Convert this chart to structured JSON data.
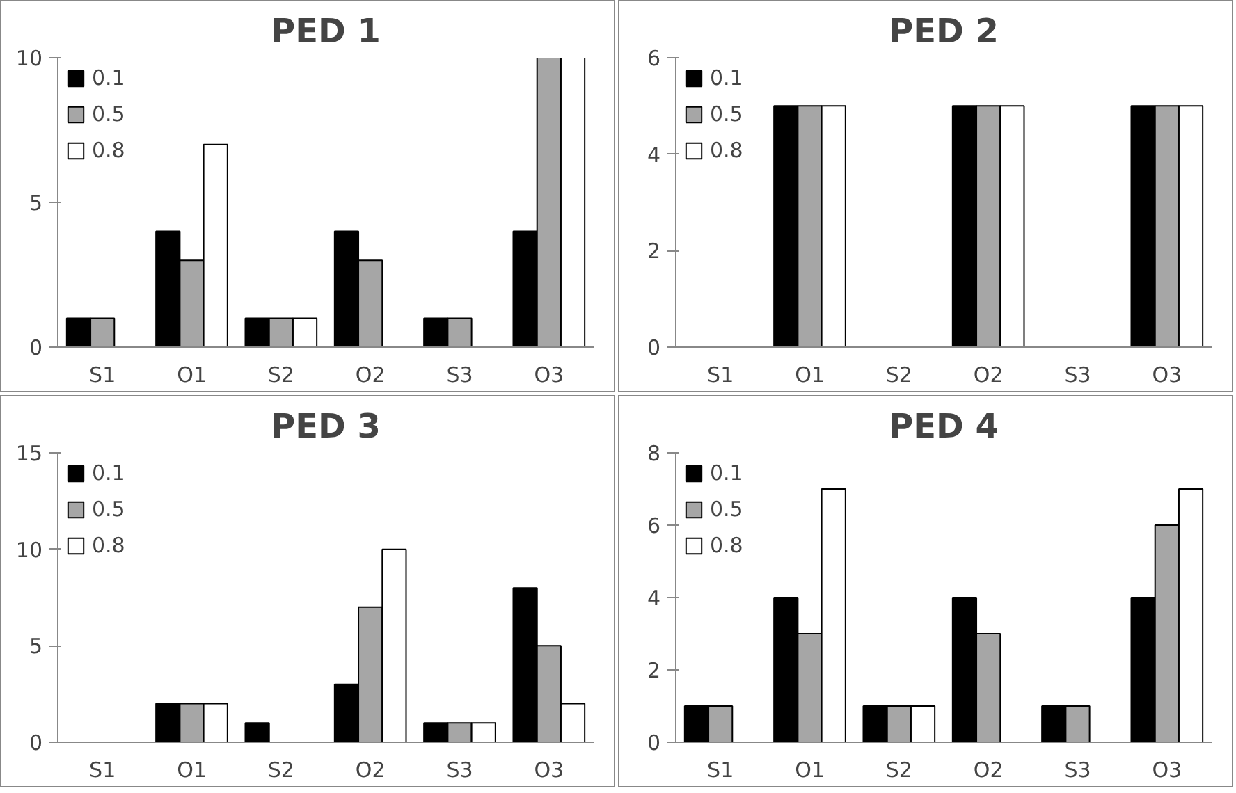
{
  "chart_data": [
    {
      "type": "bar",
      "title": "PED 1",
      "categories": [
        "S1",
        "O1",
        "S2",
        "O2",
        "S3",
        "O3"
      ],
      "ylim": [
        0,
        10
      ],
      "yticks": [
        0,
        5,
        10
      ],
      "legend": "top left",
      "grid": false,
      "series": [
        {
          "name": "0.1",
          "color": "#000000",
          "values": [
            1,
            4,
            1,
            4,
            1,
            4
          ]
        },
        {
          "name": "0.5",
          "color": "#a6a6a6",
          "values": [
            1,
            3,
            1,
            3,
            1,
            10
          ]
        },
        {
          "name": "0.8",
          "color": "#ffffff",
          "values": [
            0,
            7,
            1,
            0,
            0,
            10
          ]
        }
      ]
    },
    {
      "type": "bar",
      "title": "PED 2",
      "categories": [
        "S1",
        "O1",
        "S2",
        "O2",
        "S3",
        "O3"
      ],
      "ylim": [
        0,
        6
      ],
      "yticks": [
        0,
        2,
        4,
        6
      ],
      "legend": "top left",
      "grid": false,
      "series": [
        {
          "name": "0.1",
          "color": "#000000",
          "values": [
            0,
            5,
            0,
            5,
            0,
            5
          ]
        },
        {
          "name": "0.5",
          "color": "#a6a6a6",
          "values": [
            0,
            5,
            0,
            5,
            0,
            5
          ]
        },
        {
          "name": "0.8",
          "color": "#ffffff",
          "values": [
            0,
            5,
            0,
            5,
            0,
            5
          ]
        }
      ]
    },
    {
      "type": "bar",
      "title": "PED 3",
      "categories": [
        "S1",
        "O1",
        "S2",
        "O2",
        "S3",
        "O3"
      ],
      "ylim": [
        0,
        15
      ],
      "yticks": [
        0,
        5,
        10,
        15
      ],
      "legend": "top left",
      "grid": false,
      "series": [
        {
          "name": "0.1",
          "color": "#000000",
          "values": [
            0,
            2,
            1,
            3,
            1,
            8
          ]
        },
        {
          "name": "0.5",
          "color": "#a6a6a6",
          "values": [
            0,
            2,
            0,
            7,
            1,
            5
          ]
        },
        {
          "name": "0.8",
          "color": "#ffffff",
          "values": [
            0,
            2,
            0,
            10,
            1,
            2
          ]
        }
      ]
    },
    {
      "type": "bar",
      "title": "PED 4",
      "categories": [
        "S1",
        "O1",
        "S2",
        "O2",
        "S3",
        "O3"
      ],
      "ylim": [
        0,
        8
      ],
      "yticks": [
        0,
        2,
        4,
        6,
        8
      ],
      "legend": "top left",
      "grid": false,
      "series": [
        {
          "name": "0.1",
          "color": "#000000",
          "values": [
            1,
            4,
            1,
            4,
            1,
            4
          ]
        },
        {
          "name": "0.5",
          "color": "#a6a6a6",
          "values": [
            1,
            3,
            1,
            3,
            1,
            6
          ]
        },
        {
          "name": "0.8",
          "color": "#ffffff",
          "values": [
            0,
            7,
            1,
            0,
            0,
            7
          ]
        }
      ]
    }
  ]
}
